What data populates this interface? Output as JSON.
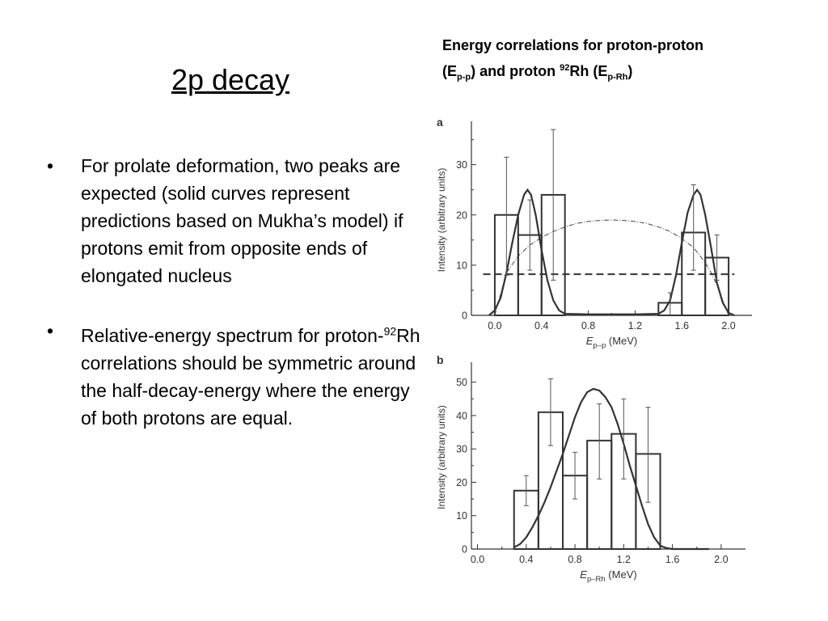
{
  "slide": {
    "title": "2p decay",
    "bullets": [
      {
        "text": "For prolate deformation, two peaks are expected (solid curves represent predictions based on Mukha’s model) if protons emit from opposite ends of elongated nucleus"
      },
      {
        "pre": "Relative-energy spectrum for proton-",
        "sup": "92",
        "post": "Rh correlations should be symmetric around the half-decay-energy where the energy of both protons are equal."
      }
    ],
    "bullet_symbol": "•"
  },
  "caption": {
    "line1": "Energy correlations for proton-proton",
    "p1": "(E",
    "s1": "p-p",
    "p2": ") and proton ",
    "s2": "92",
    "p3": "Rh (E",
    "s3": "p-Rh",
    "p4": ")"
  },
  "chart_data": [
    {
      "type": "bar",
      "panel_label": "a",
      "xlabel_main": "E",
      "xlabel_sub": "p–p",
      "xlabel_unit": " (MeV)",
      "ylabel": "Intensity (arbitrary units)",
      "xlim": [
        -0.2,
        2.2
      ],
      "ylim": [
        0,
        38
      ],
      "xticks": [
        0.0,
        0.4,
        0.8,
        1.2,
        1.6,
        2.0
      ],
      "xtick_labels": [
        "0.0",
        "0.4",
        "0.8",
        "1.2",
        "1.6",
        "2.0"
      ],
      "yticks": [
        0,
        10,
        20,
        30
      ],
      "yticks_labels": [
        "0",
        "10",
        "20",
        "30"
      ],
      "histogram": {
        "bins": [
          [
            0.0,
            0.2
          ],
          [
            0.2,
            0.4
          ],
          [
            0.4,
            0.6
          ],
          [
            0.6,
            1.4
          ],
          [
            1.4,
            1.6
          ],
          [
            1.6,
            1.8
          ],
          [
            1.8,
            2.0
          ]
        ],
        "values": [
          20,
          16,
          24,
          0,
          2.5,
          16.5,
          11.5
        ]
      },
      "error_bars": [
        {
          "x": 0.1,
          "lo": 8,
          "hi": 31.5
        },
        {
          "x": 0.3,
          "lo": 9,
          "hi": 23
        },
        {
          "x": 0.5,
          "lo": 7,
          "hi": 37
        },
        {
          "x": 1.5,
          "lo": 0,
          "hi": 4.5
        },
        {
          "x": 1.7,
          "lo": 9,
          "hi": 26
        },
        {
          "x": 1.9,
          "lo": 7,
          "hi": 16
        }
      ],
      "model_curve": {
        "x": [
          -0.05,
          0.0,
          0.05,
          0.1,
          0.15,
          0.2,
          0.25,
          0.28,
          0.31,
          0.35,
          0.4,
          0.45,
          0.5,
          0.55,
          0.6,
          0.8,
          1.0,
          1.2,
          1.4,
          1.45,
          1.5,
          1.55,
          1.6,
          1.65,
          1.7,
          1.73,
          1.76,
          1.8,
          1.85,
          1.9,
          1.95,
          2.0,
          2.05
        ],
        "y": [
          0,
          1,
          3.5,
          8.5,
          14.5,
          20,
          24,
          25,
          24,
          20,
          13,
          7,
          3,
          1,
          0.3,
          0.2,
          0.2,
          0.2,
          0.3,
          1,
          3,
          8,
          14.5,
          20.5,
          24,
          25,
          24,
          20,
          13.5,
          6.5,
          2.5,
          0.5,
          0
        ]
      },
      "dashdot_curve": {
        "x": [
          0.0,
          0.1,
          0.2,
          0.3,
          0.4,
          0.5,
          0.6,
          0.7,
          0.8,
          0.9,
          1.0,
          1.1,
          1.2,
          1.3,
          1.4,
          1.5,
          1.6,
          1.7,
          1.8,
          1.85,
          1.9,
          1.95,
          2.0
        ],
        "y": [
          0,
          8.5,
          11.8,
          14,
          15.5,
          16.7,
          17.6,
          18.3,
          18.7,
          18.9,
          19,
          18.9,
          18.7,
          18.3,
          17.6,
          16.7,
          15.3,
          13.5,
          10.5,
          8.5,
          6,
          3,
          0
        ]
      },
      "dashed_level": 8.2
    },
    {
      "type": "bar",
      "panel_label": "b",
      "xlabel_main": "E",
      "xlabel_sub": "p–Rh",
      "xlabel_unit": " (MeV)",
      "ylabel": "Intensity (arbitrary units)",
      "xlim": [
        -0.05,
        2.2
      ],
      "ylim": [
        0,
        55
      ],
      "xticks": [
        0.0,
        0.4,
        0.8,
        1.2,
        1.6,
        2.0
      ],
      "xtick_labels": [
        "0.0",
        "0.4",
        "0.8",
        "1.2",
        "1.6",
        "2.0"
      ],
      "yticks": [
        0,
        10,
        20,
        30,
        40,
        50
      ],
      "yticks_labels": [
        "0",
        "10",
        "20",
        "30",
        "40",
        "50"
      ],
      "histogram": {
        "bins": [
          [
            0.3,
            0.5
          ],
          [
            0.5,
            0.7
          ],
          [
            0.7,
            0.9
          ],
          [
            0.9,
            1.1
          ],
          [
            1.1,
            1.3
          ],
          [
            1.3,
            1.5
          ]
        ],
        "values": [
          17.5,
          41,
          22,
          32.5,
          34.5,
          28.5
        ]
      },
      "error_bars": [
        {
          "x": 0.4,
          "lo": 13,
          "hi": 22
        },
        {
          "x": 0.6,
          "lo": 31,
          "hi": 51
        },
        {
          "x": 0.8,
          "lo": 15,
          "hi": 29
        },
        {
          "x": 1.0,
          "lo": 21,
          "hi": 43.5
        },
        {
          "x": 1.2,
          "lo": 21,
          "hi": 45
        },
        {
          "x": 1.4,
          "lo": 14,
          "hi": 42.5
        }
      ],
      "model_curve": {
        "x": [
          0.3,
          0.35,
          0.4,
          0.45,
          0.5,
          0.55,
          0.6,
          0.65,
          0.7,
          0.75,
          0.8,
          0.85,
          0.9,
          0.95,
          1.0,
          1.05,
          1.1,
          1.15,
          1.2,
          1.25,
          1.3,
          1.35,
          1.4,
          1.45,
          1.5,
          1.55,
          1.6,
          1.7,
          1.8,
          1.9
        ],
        "y": [
          0.5,
          1.5,
          3.5,
          6.5,
          10,
          14,
          18.5,
          23.5,
          28.5,
          34,
          39.5,
          44,
          47,
          48,
          47.5,
          45.5,
          42.5,
          37.5,
          31.5,
          25,
          19,
          13,
          7.5,
          3.5,
          1,
          0.3,
          0,
          0,
          0,
          0
        ]
      }
    }
  ]
}
